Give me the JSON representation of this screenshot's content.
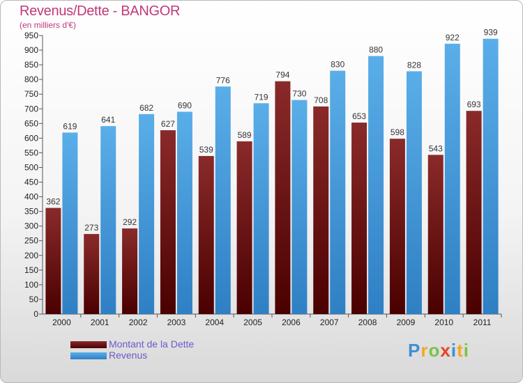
{
  "title": "Revenus/Dette - BANGOR",
  "subtitle": "(en milliers d'€)",
  "logo": {
    "letters": [
      "P",
      "r",
      "o",
      "x",
      "i",
      "t",
      "i"
    ],
    "colors": [
      "#3b8fd6",
      "#f5a623",
      "#7cc242",
      "#e8412b",
      "#3b8fd6",
      "#f5a623",
      "#7cc242"
    ]
  },
  "chart_data": {
    "type": "bar",
    "title": "Revenus/Dette - BANGOR",
    "ylabel": "(en milliers d'€)",
    "xlabel": "",
    "ylim": [
      0,
      950
    ],
    "ytick_step": 50,
    "categories": [
      "2000",
      "2001",
      "2002",
      "2003",
      "2004",
      "2005",
      "2006",
      "2007",
      "2008",
      "2009",
      "2010",
      "2011"
    ],
    "series": [
      {
        "name": "Montant de la Dette",
        "color": "#7a1a1a",
        "values": [
          362,
          273,
          292,
          627,
          539,
          589,
          794,
          708,
          653,
          598,
          543,
          693
        ]
      },
      {
        "name": "Revenus",
        "color": "#4a9de0",
        "values": [
          619,
          641,
          682,
          690,
          776,
          719,
          730,
          830,
          880,
          828,
          922,
          939
        ]
      }
    ],
    "legend_position": "bottom-left",
    "grid": false
  }
}
